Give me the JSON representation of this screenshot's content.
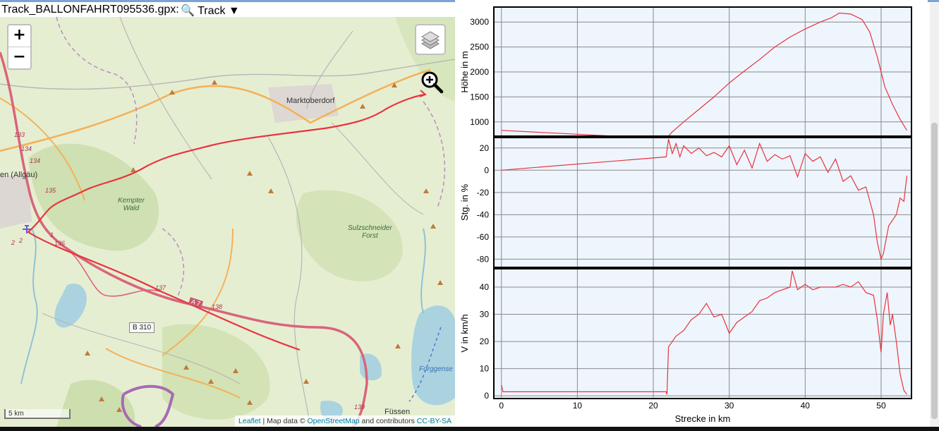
{
  "topbar": {
    "title": "Track_BALLONFAHRT095536.gpx:",
    "menu_label": "🔍 Track ▼"
  },
  "map": {
    "zoom_in": "+",
    "zoom_out": "−",
    "scale_label": "5 km",
    "attribution": {
      "leaflet": "Leaflet",
      "sep": " | Map data © ",
      "osm": "OpenStreetMap",
      "contrib": " and contributors ",
      "license": "CC-BY-SA"
    },
    "towns": [
      {
        "name": "Marktoberdorf"
      },
      {
        "name": "Füssen"
      },
      {
        "name": "en (Allgäu)"
      },
      {
        "name": "Forggense"
      }
    ],
    "forests": [
      {
        "name": "Kempter\nWald"
      },
      {
        "name": "Sulzschneider\nForst"
      }
    ],
    "road_numbers": [
      "133",
      "134",
      "134",
      "135",
      "136",
      "137",
      "138",
      "139",
      "1",
      "2",
      "2"
    ],
    "b310": "B 310",
    "a7": "A 7",
    "track_color": "#e8343f",
    "icons": [
      "zoom-in-icon",
      "layers-icon",
      "magnifier-icon",
      "airport-icon"
    ]
  },
  "chart_data": [
    {
      "type": "line",
      "ylabel": "Höhe in m",
      "xlim": [
        -1,
        54
      ],
      "ylim": [
        700,
        3300
      ],
      "yticks": [
        1000,
        1500,
        2000,
        2500,
        3000
      ],
      "color": "#e8343f",
      "x": [
        0,
        21.7,
        22.5,
        24,
        26,
        28,
        30,
        32,
        34,
        36,
        38,
        40,
        42,
        43.5,
        44.5,
        46,
        47.5,
        48.5,
        49.5,
        50.5,
        51.5,
        52.5,
        53.4
      ],
      "y": [
        830,
        660,
        800,
        1000,
        1250,
        1500,
        1780,
        2020,
        2250,
        2500,
        2700,
        2860,
        3000,
        3090,
        3180,
        3160,
        3050,
        2800,
        2300,
        1700,
        1350,
        1050,
        830
      ]
    },
    {
      "type": "line",
      "ylabel": "Stg. in %",
      "xlim": [
        -1,
        54
      ],
      "ylim": [
        -88,
        30
      ],
      "yticks": [
        20,
        0,
        -20,
        -40,
        -60,
        -80
      ],
      "color": "#e8343f",
      "x": [
        0,
        21.7,
        22,
        22.5,
        23,
        23.5,
        24,
        25,
        26,
        27,
        28,
        29,
        30,
        31,
        32,
        33,
        34,
        35,
        36,
        37,
        38,
        39,
        40,
        41,
        42,
        43,
        44,
        45,
        46,
        47,
        48,
        49,
        49.5,
        50,
        50.3,
        51,
        52,
        52.5,
        53,
        53.4
      ],
      "y": [
        0,
        12,
        28,
        15,
        24,
        12,
        22,
        15,
        20,
        13,
        16,
        12,
        22,
        5,
        18,
        2,
        24,
        8,
        14,
        10,
        13,
        -6,
        15,
        8,
        12,
        -2,
        10,
        -10,
        -5,
        -18,
        -15,
        -40,
        -65,
        -80,
        -75,
        -50,
        -40,
        -25,
        -28,
        -5
      ]
    },
    {
      "type": "line",
      "ylabel": "V in km/h",
      "xlabel": "Strecke in km",
      "xlim": [
        -1,
        54
      ],
      "ylim": [
        -1,
        47
      ],
      "yticks": [
        0,
        10,
        20,
        30,
        40
      ],
      "xticks": [
        0,
        10,
        20,
        30,
        40,
        50
      ],
      "color": "#e8343f",
      "x": [
        0,
        0.2,
        21.7,
        21.8,
        22,
        23,
        24,
        25,
        26,
        27,
        28,
        29,
        30,
        31,
        32,
        33,
        34,
        35,
        36,
        37,
        38,
        38.3,
        39,
        40,
        41,
        42,
        43,
        44,
        45,
        46,
        47,
        48,
        49,
        49.5,
        50,
        50.3,
        50.8,
        51.2,
        51.5,
        52,
        52.5,
        53,
        53.4
      ],
      "y": [
        4,
        1.5,
        1.5,
        0.5,
        18,
        22,
        24,
        28,
        30,
        34,
        29,
        30,
        23,
        27,
        29,
        31,
        35,
        36,
        38,
        39,
        40,
        46,
        39,
        41,
        39,
        40,
        40,
        40,
        41,
        40,
        42,
        38,
        37,
        28,
        16,
        30,
        38,
        26,
        30,
        20,
        8,
        2,
        0.5
      ]
    }
  ]
}
